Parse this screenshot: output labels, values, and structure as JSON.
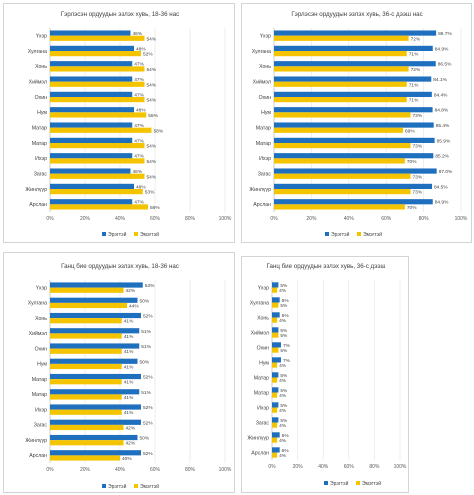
{
  "colors": {
    "male": "#1f6fbf",
    "female": "#f5c400"
  },
  "chart_data": [
    {
      "type": "bar",
      "orientation": "horizontal",
      "title": "Гэрлэсэн ордуудын эзлэх хувь, 18-36 нас",
      "categories": [
        "Үхэр",
        "Хулгана",
        "Хонь",
        "Хиймэл",
        "Охин",
        "Нум",
        "Матар",
        "Матар",
        "Ихэр",
        "Загас",
        "Жинлүүр",
        "Арслан"
      ],
      "series": [
        {
          "name": "Эрэгтэй",
          "values": [
            46,
            48,
            47,
            47,
            47,
            48,
            47,
            47,
            47,
            46,
            48,
            47
          ],
          "labels": [
            "46%",
            "48%",
            "47%",
            "47%",
            "47%",
            "48%",
            "47%",
            "47%",
            "47%",
            "46%",
            "48%",
            "47%"
          ]
        },
        {
          "name": "Эмэгтэй",
          "values": [
            54,
            52,
            54,
            54,
            54,
            55,
            58,
            54,
            54,
            54,
            53,
            56
          ],
          "labels": [
            "54%",
            "52%",
            "54%",
            "54%",
            "54%",
            "55%",
            "58%",
            "54%",
            "54%",
            "54%",
            "53%",
            "56%"
          ]
        }
      ],
      "xlim": [
        0,
        100
      ],
      "xticks": [
        "0%",
        "20%",
        "40%",
        "60%",
        "80%",
        "100%"
      ],
      "legend": "bottom-left"
    },
    {
      "type": "bar",
      "orientation": "horizontal",
      "title": "Гэрлэсэн ордуудын эзлэх хувь, 36-с дээш нас",
      "categories": [
        "Үхэр",
        "Хулгана",
        "Хонь",
        "Хиймэл",
        "Охин",
        "Нум",
        "Матар",
        "Матар",
        "Ихэр",
        "Загас",
        "Жинлүүр",
        "Арслан"
      ],
      "series": [
        {
          "name": "Эрэгтэй",
          "values": [
            86.7,
            84.9,
            86.5,
            84.1,
            84.4,
            84.8,
            85.4,
            85.9,
            85.2,
            87.0,
            84.5,
            84.9
          ],
          "labels": [
            "86.7%",
            "84.9%",
            "86.5%",
            "84.1%",
            "84.4%",
            "84.8%",
            "85.4%",
            "85.9%",
            "85.2%",
            "87.0%",
            "84.5%",
            "84.9%"
          ]
        },
        {
          "name": "Эмэгтэй",
          "values": [
            72,
            71,
            72,
            71,
            71,
            73,
            69,
            73,
            70,
            73,
            73,
            70
          ],
          "labels": [
            "72%",
            "71%",
            "72%",
            "71%",
            "71%",
            "73%",
            "69%",
            "73%",
            "70%",
            "73%",
            "73%",
            "70%"
          ]
        }
      ],
      "xlim": [
        0,
        100
      ],
      "xticks": [
        "0%",
        "20%",
        "40%",
        "60%",
        "80%",
        "100%"
      ],
      "legend": "bottom-left"
    },
    {
      "type": "bar",
      "orientation": "horizontal",
      "title": "Ганц бие ордуудын эзлэх хувь, 18-36 нас",
      "categories": [
        "Үхэр",
        "Хулгана",
        "Хонь",
        "Хиймэл",
        "Охин",
        "Нум",
        "Матар",
        "Матар",
        "Ихэр",
        "Загас",
        "Жинлүүр",
        "Арслан"
      ],
      "series": [
        {
          "name": "Эрэгтэй",
          "values": [
            53,
            50,
            52,
            51,
            51,
            50,
            52,
            51,
            52,
            52,
            50,
            52
          ],
          "labels": [
            "53%",
            "50%",
            "52%",
            "51%",
            "51%",
            "50%",
            "52%",
            "51%",
            "52%",
            "52%",
            "50%",
            "52%"
          ]
        },
        {
          "name": "Эмэгтэй",
          "values": [
            42,
            44,
            41,
            41,
            41,
            41,
            41,
            41,
            41,
            42,
            42,
            40
          ],
          "labels": [
            "42%",
            "44%",
            "41%",
            "41%",
            "41%",
            "41%",
            "41%",
            "41%",
            "41%",
            "42%",
            "42%",
            "40%"
          ]
        }
      ],
      "xlim": [
        0,
        100
      ],
      "xticks": [
        "0%",
        "20%",
        "40%",
        "60%",
        "80%",
        "100%"
      ],
      "legend": "bottom-left"
    },
    {
      "type": "bar",
      "orientation": "horizontal",
      "title": "Ганц бие ордуудын эзлэх хувь, 36-с дээш",
      "categories": [
        "Үхэр",
        "Хулгана",
        "Хонь",
        "Хиймэл",
        "Охин",
        "Нум",
        "Матар",
        "Матар",
        "Ихэр",
        "Загас",
        "Жинлүүр",
        "Арслан"
      ],
      "series": [
        {
          "name": "Эрэгтэй",
          "values": [
            5,
            6,
            6,
            5,
            7,
            7,
            5,
            5,
            5,
            5,
            6,
            6
          ],
          "labels": [
            "5%",
            "6%",
            "6%",
            "5%",
            "7%",
            "7%",
            "5%",
            "5%",
            "5%",
            "5%",
            "6%",
            "6%"
          ]
        },
        {
          "name": "Эмэгтэй",
          "values": [
            4,
            5,
            4,
            5,
            5,
            4,
            4,
            4,
            4,
            4,
            4,
            4
          ],
          "labels": [
            "4%",
            "5%",
            "4%",
            "5%",
            "5%",
            "4%",
            "4%",
            "4%",
            "4%",
            "4%",
            "4%",
            "4%"
          ]
        }
      ],
      "xlim": [
        0,
        100
      ],
      "xticks": [
        "0%",
        "20%",
        "40%",
        "60%",
        "80%",
        "100%"
      ],
      "legend": "bottom-left"
    }
  ]
}
